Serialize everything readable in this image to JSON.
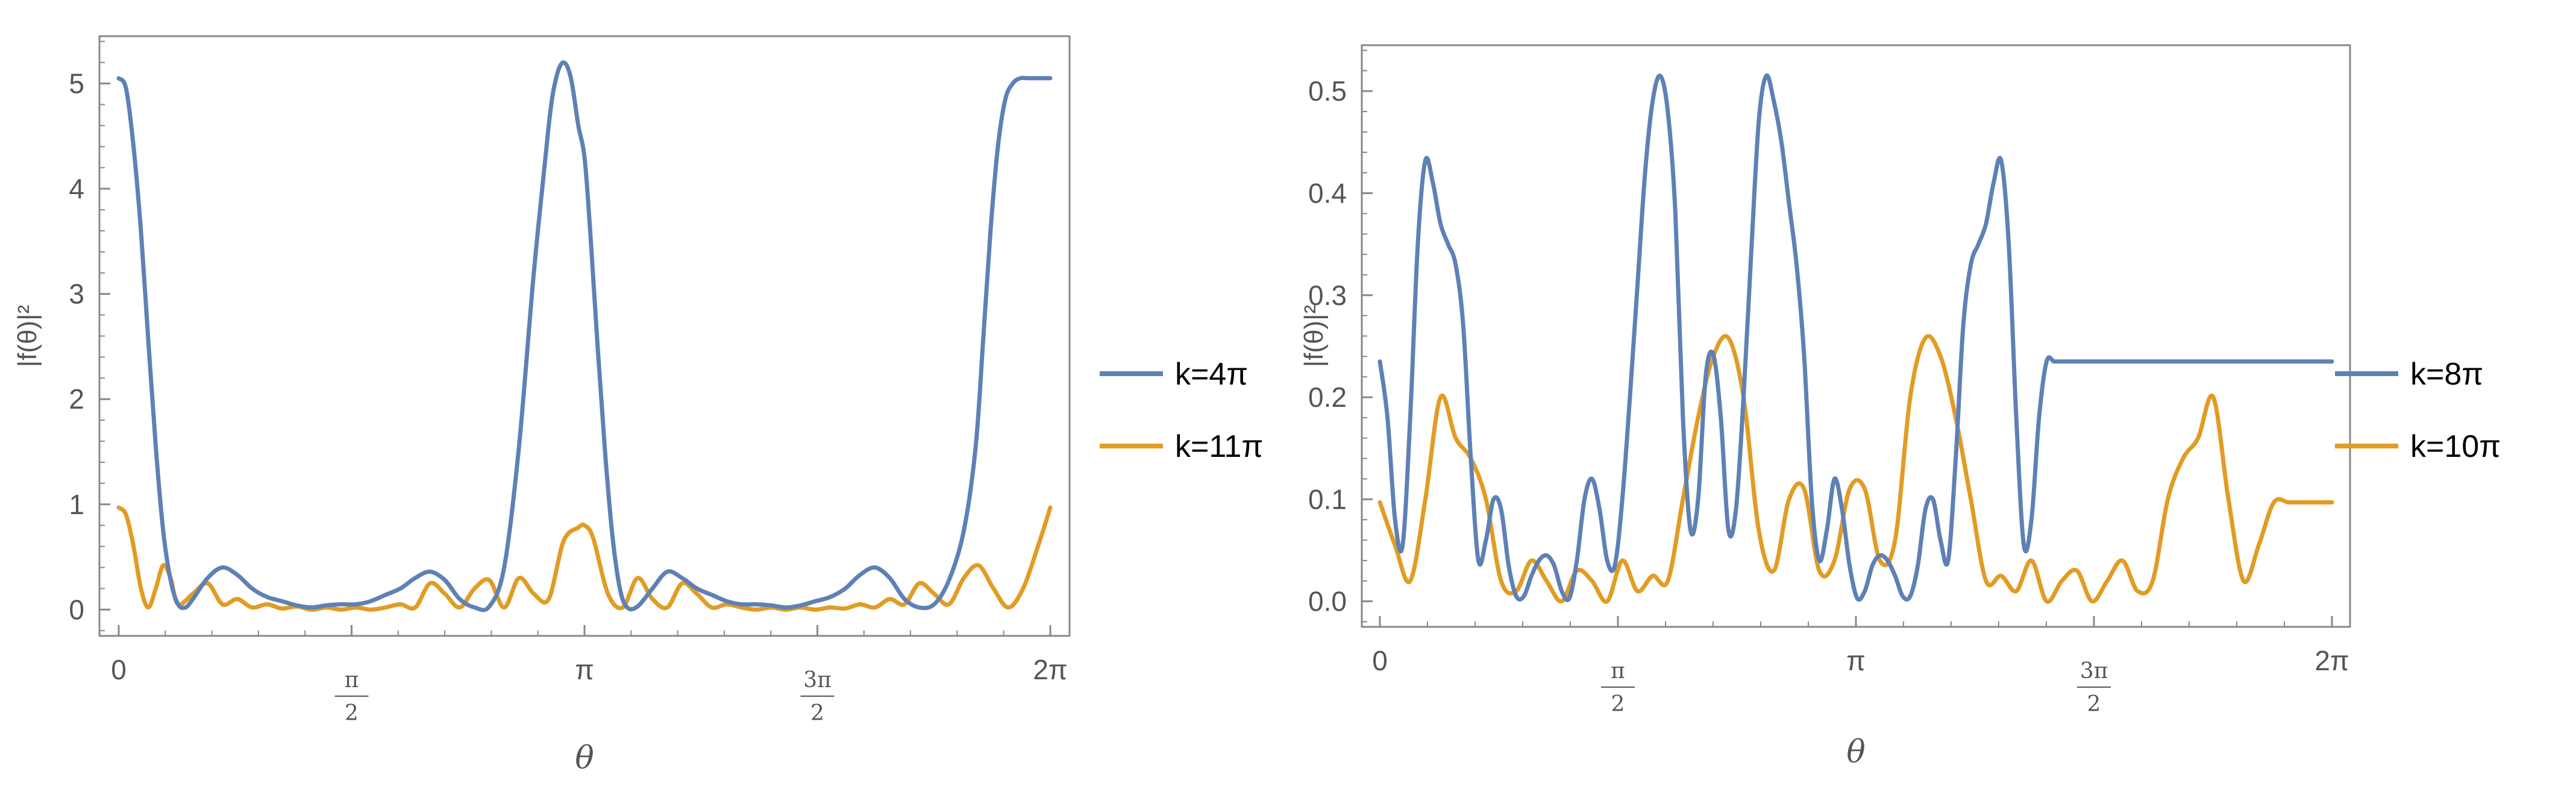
{
  "chart_data": [
    {
      "type": "line",
      "xlabel": "θ",
      "ylabel": "|f(θ)|²",
      "xlim": [
        0,
        6.2832
      ],
      "ylim": [
        -0.25,
        5.45
      ],
      "yticks": [
        "0",
        "1",
        "2",
        "3",
        "4",
        "5"
      ],
      "xticks": [
        {
          "value": 0,
          "label": "0"
        },
        {
          "value": 1.5708,
          "label": "π/2"
        },
        {
          "value": 3.1416,
          "label": "π"
        },
        {
          "value": 4.7124,
          "label": "3π/2"
        },
        {
          "value": 6.2832,
          "label": "2π"
        }
      ],
      "legend_position": "right",
      "series": [
        {
          "name": "k=4π",
          "color": "#5e81b5",
          "x": [
            0,
            0.05,
            0.1,
            0.15,
            0.2,
            0.25,
            0.3,
            0.35,
            0.4,
            0.45,
            0.5,
            0.6,
            0.7,
            0.8,
            0.9,
            1.0,
            1.1,
            1.2,
            1.3,
            1.4,
            1.5,
            1.6,
            1.7,
            1.8,
            1.9,
            2.0,
            2.1,
            2.2,
            2.3,
            2.4,
            2.5,
            2.6,
            2.7,
            2.8,
            2.9,
            2.95,
            3.0,
            3.05,
            3.1,
            3.1416,
            3.18,
            3.23,
            3.28,
            3.33,
            3.38,
            3.43,
            3.5,
            3.6,
            3.7,
            3.8,
            3.9,
            4.0,
            4.1,
            4.2,
            4.3,
            4.4,
            4.5,
            4.6,
            4.7,
            4.8,
            4.9,
            5.0,
            5.1,
            5.2,
            5.3,
            5.4,
            5.5,
            5.6,
            5.7,
            5.78,
            5.83,
            5.88,
            5.93,
            5.98,
            6.03,
            6.08,
            6.13,
            6.18,
            6.23,
            6.2832
          ],
          "y": [
            5.05,
            4.95,
            4.4,
            3.6,
            2.55,
            1.55,
            0.75,
            0.28,
            0.05,
            0.02,
            0.1,
            0.3,
            0.4,
            0.33,
            0.2,
            0.12,
            0.08,
            0.04,
            0.02,
            0.04,
            0.05,
            0.05,
            0.08,
            0.14,
            0.2,
            0.3,
            0.36,
            0.28,
            0.1,
            0.02,
            0.03,
            0.4,
            1.55,
            3.2,
            4.6,
            5.05,
            5.2,
            5.05,
            4.6,
            4.3,
            3.6,
            2.5,
            1.5,
            0.7,
            0.2,
            0.02,
            0.03,
            0.2,
            0.36,
            0.3,
            0.2,
            0.14,
            0.08,
            0.05,
            0.05,
            0.04,
            0.02,
            0.04,
            0.08,
            0.12,
            0.2,
            0.33,
            0.4,
            0.3,
            0.1,
            0.02,
            0.05,
            0.28,
            0.75,
            1.55,
            2.55,
            3.6,
            4.4,
            4.85,
            5.0,
            5.05,
            5.05,
            5.05,
            5.05,
            5.05
          ]
        },
        {
          "name": "k=11π",
          "color": "#e19c24",
          "x": [
            0,
            0.05,
            0.1,
            0.15,
            0.2,
            0.25,
            0.3,
            0.35,
            0.4,
            0.5,
            0.6,
            0.7,
            0.8,
            0.9,
            1.0,
            1.1,
            1.2,
            1.3,
            1.4,
            1.5,
            1.6,
            1.7,
            1.8,
            1.9,
            2.0,
            2.1,
            2.2,
            2.3,
            2.4,
            2.5,
            2.6,
            2.7,
            2.8,
            2.9,
            3.0,
            3.1,
            3.1416,
            3.2,
            3.3,
            3.4,
            3.5,
            3.6,
            3.7,
            3.8,
            3.9,
            4.0,
            4.1,
            4.2,
            4.3,
            4.4,
            4.5,
            4.6,
            4.7,
            4.8,
            4.9,
            5.0,
            5.1,
            5.2,
            5.3,
            5.4,
            5.5,
            5.6,
            5.7,
            5.8,
            5.9,
            6.0,
            6.1,
            6.2,
            6.2832
          ],
          "y": [
            0.97,
            0.9,
            0.6,
            0.2,
            0.02,
            0.2,
            0.42,
            0.3,
            0.05,
            0.15,
            0.25,
            0.05,
            0.1,
            0.02,
            0.05,
            0.01,
            0.03,
            0.0,
            0.02,
            0.0,
            0.02,
            0.0,
            0.02,
            0.05,
            0.02,
            0.25,
            0.15,
            0.02,
            0.2,
            0.28,
            0.02,
            0.3,
            0.15,
            0.1,
            0.65,
            0.78,
            0.8,
            0.68,
            0.15,
            0.02,
            0.3,
            0.1,
            0.02,
            0.25,
            0.15,
            0.02,
            0.05,
            0.02,
            0.0,
            0.02,
            0.0,
            0.02,
            0.0,
            0.02,
            0.01,
            0.05,
            0.02,
            0.1,
            0.05,
            0.25,
            0.15,
            0.05,
            0.3,
            0.42,
            0.2,
            0.02,
            0.2,
            0.6,
            0.97
          ]
        }
      ]
    },
    {
      "type": "line",
      "xlabel": "θ",
      "ylabel": "|f(θ)|²",
      "xlim": [
        0,
        6.2832
      ],
      "ylim": [
        -0.025,
        0.545
      ],
      "yticks": [
        "0.0",
        "0.1",
        "0.2",
        "0.3",
        "0.4",
        "0.5"
      ],
      "xticks": [
        {
          "value": 0,
          "label": "0"
        },
        {
          "value": 1.5708,
          "label": "π/2"
        },
        {
          "value": 3.1416,
          "label": "π"
        },
        {
          "value": 4.7124,
          "label": "3π/2"
        },
        {
          "value": 6.2832,
          "label": "2π"
        }
      ],
      "legend_position": "right",
      "series": [
        {
          "name": "k=8π",
          "color": "#5e81b5",
          "x": [
            0,
            0.05,
            0.1,
            0.15,
            0.2,
            0.25,
            0.3,
            0.35,
            0.4,
            0.45,
            0.5,
            0.55,
            0.6,
            0.65,
            0.7,
            0.75,
            0.8,
            0.85,
            0.9,
            0.95,
            1.0,
            1.05,
            1.1,
            1.15,
            1.2,
            1.25,
            1.3,
            1.35,
            1.4,
            1.45,
            1.5,
            1.55,
            1.6,
            1.65,
            1.7,
            1.75,
            1.8,
            1.85,
            1.9,
            1.95,
            2.0,
            2.05,
            2.1,
            2.15,
            2.2,
            2.25,
            2.3,
            2.35,
            2.4,
            2.45,
            2.5,
            2.55,
            2.6,
            2.65,
            2.7,
            2.75,
            2.8,
            2.85,
            2.9,
            2.95,
            3.0,
            3.05,
            3.1,
            3.15,
            3.2,
            3.25,
            3.3,
            3.35,
            3.4,
            3.45,
            3.5,
            3.55,
            3.6,
            3.65,
            3.7,
            3.75,
            3.8,
            3.85,
            3.9,
            3.95,
            4.0,
            4.05,
            4.1,
            4.15,
            4.2,
            4.25,
            4.3,
            4.35,
            4.4,
            4.45,
            4.5,
            4.55,
            4.6,
            4.65,
            4.7,
            4.75,
            4.8,
            4.85,
            4.9,
            4.95,
            5.0,
            5.05,
            5.1,
            5.15,
            5.2,
            5.25,
            5.3,
            5.35,
            5.4,
            5.45,
            5.5,
            5.55,
            5.6,
            5.65,
            5.7,
            5.75,
            5.8,
            5.85,
            5.9,
            5.95,
            6.0,
            6.05,
            6.1,
            6.15,
            6.2,
            6.2832
          ],
          "y": [
            0.235,
            0.18,
            0.08,
            0.055,
            0.18,
            0.35,
            0.432,
            0.41,
            0.37,
            0.35,
            0.33,
            0.27,
            0.14,
            0.04,
            0.06,
            0.1,
            0.09,
            0.035,
            0.005,
            0.005,
            0.025,
            0.04,
            0.045,
            0.035,
            0.01,
            0.003,
            0.04,
            0.1,
            0.12,
            0.09,
            0.04,
            0.035,
            0.1,
            0.2,
            0.31,
            0.42,
            0.49,
            0.515,
            0.48,
            0.38,
            0.18,
            0.07,
            0.1,
            0.22,
            0.242,
            0.18,
            0.07,
            0.09,
            0.2,
            0.34,
            0.47,
            0.515,
            0.49,
            0.45,
            0.39,
            0.33,
            0.24,
            0.1,
            0.04,
            0.07,
            0.12,
            0.09,
            0.035,
            0.003,
            0.01,
            0.035,
            0.045,
            0.04,
            0.025,
            0.005,
            0.005,
            0.035,
            0.09,
            0.1,
            0.06,
            0.04,
            0.14,
            0.27,
            0.33,
            0.35,
            0.37,
            0.41,
            0.432,
            0.35,
            0.18,
            0.055,
            0.08,
            0.18,
            0.235,
            0.235,
            0.235,
            0.235,
            0.235,
            0.235,
            0.235,
            0.235,
            0.235,
            0.235,
            0.235,
            0.235,
            0.235,
            0.235,
            0.235,
            0.235,
            0.235,
            0.235,
            0.235,
            0.235,
            0.235,
            0.235,
            0.235,
            0.235,
            0.235,
            0.235,
            0.235,
            0.235,
            0.235,
            0.235,
            0.235,
            0.235,
            0.235,
            0.235,
            0.235,
            0.235,
            0.235,
            0.235
          ]
        },
        {
          "name": "k=10π",
          "color": "#e19c24",
          "x": [
            0,
            0.1,
            0.2,
            0.3,
            0.4,
            0.5,
            0.6,
            0.7,
            0.8,
            0.9,
            1.0,
            1.1,
            1.2,
            1.3,
            1.4,
            1.5,
            1.6,
            1.7,
            1.8,
            1.9,
            2.0,
            2.1,
            2.2,
            2.3,
            2.4,
            2.5,
            2.6,
            2.7,
            2.8,
            2.9,
            3.0,
            3.1,
            3.2,
            3.3,
            3.4,
            3.5,
            3.6,
            3.7,
            3.8,
            3.9,
            4.0,
            4.1,
            4.2,
            4.3,
            4.4,
            4.5,
            4.6,
            4.7,
            4.8,
            4.9,
            5.0,
            5.1,
            5.2,
            5.3,
            5.4,
            5.5,
            5.6,
            5.7,
            5.8,
            5.9,
            6.0,
            6.1,
            6.2,
            6.2832
          ],
          "y": [
            0.097,
            0.055,
            0.02,
            0.1,
            0.2,
            0.16,
            0.14,
            0.1,
            0.02,
            0.01,
            0.04,
            0.02,
            0.0,
            0.03,
            0.02,
            0.0,
            0.04,
            0.01,
            0.025,
            0.02,
            0.1,
            0.18,
            0.24,
            0.258,
            0.2,
            0.07,
            0.03,
            0.1,
            0.11,
            0.03,
            0.04,
            0.11,
            0.11,
            0.04,
            0.06,
            0.2,
            0.258,
            0.24,
            0.18,
            0.1,
            0.02,
            0.025,
            0.01,
            0.04,
            0.0,
            0.02,
            0.03,
            0.0,
            0.02,
            0.04,
            0.01,
            0.02,
            0.1,
            0.14,
            0.16,
            0.2,
            0.1,
            0.02,
            0.055,
            0.097,
            0.097,
            0.097,
            0.097,
            0.097
          ]
        }
      ]
    }
  ]
}
